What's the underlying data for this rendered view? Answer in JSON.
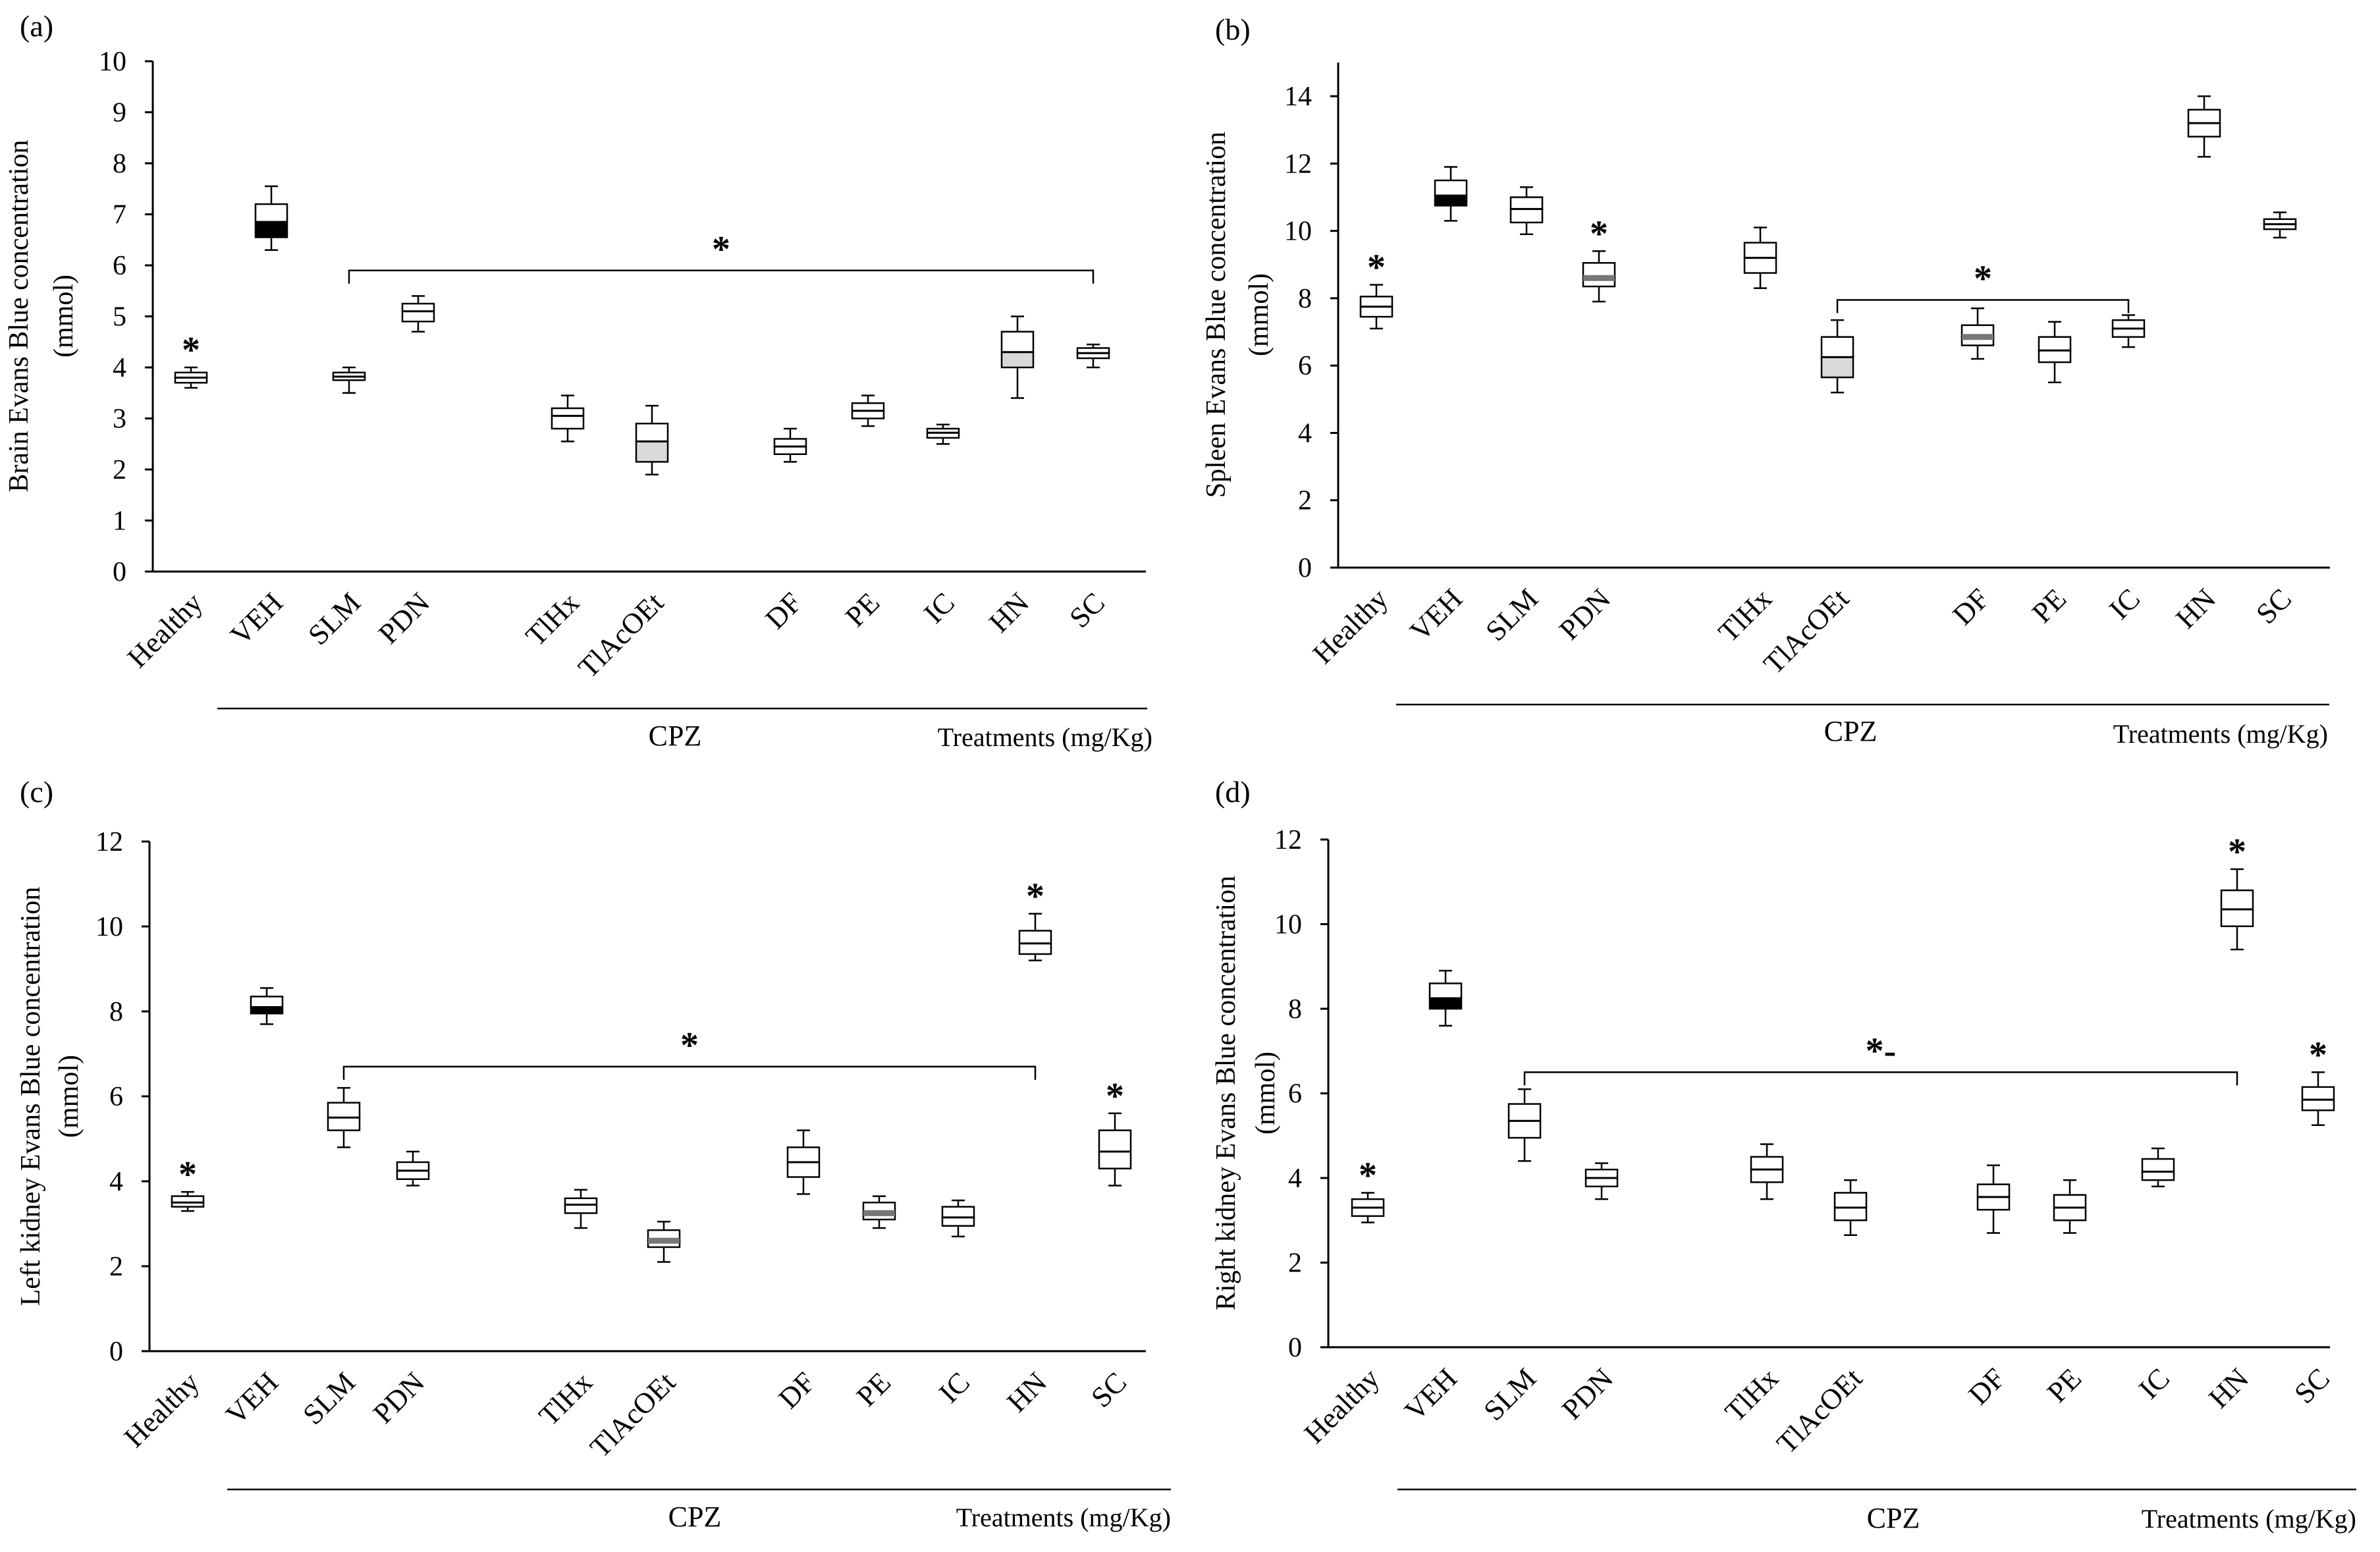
{
  "colors": {
    "axis": "#000000",
    "box_fill": "#ffffff",
    "median_dark": "#000000",
    "median_gray": "#777777",
    "light_fill": "#d9d9d9"
  },
  "chart_data": [
    {
      "panel": "(a)",
      "type": "box",
      "ylabel_main": "Brain Evans  Blue concentration",
      "ylabel_unit": "(mmol)",
      "ylim": [
        0,
        10
      ],
      "yticks": [
        "0",
        "1",
        "2",
        "3",
        "4",
        "5",
        "6",
        "7",
        "8",
        "9",
        "10"
      ],
      "categories": [
        "Healthy",
        "VEH",
        "SLM",
        "PDN",
        "TlHx",
        "TlAcOEt",
        "DF",
        "PE",
        "IC",
        "HN",
        "SC"
      ],
      "boxes": [
        {
          "min": 3.6,
          "q1": 3.7,
          "median": 3.8,
          "q3": 3.9,
          "max": 4.0,
          "style": "plain"
        },
        {
          "min": 6.3,
          "q1": 6.55,
          "median": 6.85,
          "q3": 7.2,
          "max": 7.55,
          "style": "dark_lower"
        },
        {
          "min": 3.5,
          "q1": 3.75,
          "median": 3.82,
          "q3": 3.9,
          "max": 4.0,
          "style": "plain"
        },
        {
          "min": 4.7,
          "q1": 4.9,
          "median": 5.1,
          "q3": 5.25,
          "max": 5.4,
          "style": "plain"
        },
        {
          "min": 2.55,
          "q1": 2.8,
          "median": 3.05,
          "q3": 3.2,
          "max": 3.45,
          "style": "plain"
        },
        {
          "min": 1.9,
          "q1": 2.15,
          "median": 2.55,
          "q3": 2.9,
          "max": 3.25,
          "style": "light_lower"
        },
        {
          "min": 2.15,
          "q1": 2.3,
          "median": 2.45,
          "q3": 2.6,
          "max": 2.8,
          "style": "plain"
        },
        {
          "min": 2.85,
          "q1": 3.0,
          "median": 3.15,
          "q3": 3.3,
          "max": 3.45,
          "style": "plain"
        },
        {
          "min": 2.5,
          "q1": 2.62,
          "median": 2.72,
          "q3": 2.8,
          "max": 2.88,
          "style": "plain"
        },
        {
          "min": 3.4,
          "q1": 4.0,
          "median": 4.3,
          "q3": 4.7,
          "max": 5.0,
          "style": "light_lower"
        },
        {
          "min": 4.0,
          "q1": 4.18,
          "median": 4.28,
          "q3": 4.38,
          "max": 4.45,
          "style": "plain"
        }
      ],
      "stars": [
        {
          "label": "*",
          "index": 0
        }
      ],
      "bracket": {
        "label": "*",
        "from": 2,
        "to": 10,
        "y": 5.9
      },
      "group_label": "CPZ",
      "treatments_label": "Treatments (mg/Kg)"
    },
    {
      "panel": "(b)",
      "type": "box",
      "ylabel_main": "Spleen Evans  Blue concentration",
      "ylabel_unit": "(mmol)",
      "ylim": [
        0,
        15
      ],
      "yticks": [
        "0",
        "2",
        "4",
        "6",
        "8",
        "10",
        "12",
        "14"
      ],
      "categories": [
        "Healthy",
        "VEH",
        "SLM",
        "PDN",
        "TlHx",
        "TlAcOEt",
        "DF",
        "PE",
        "IC",
        "HN",
        "SC"
      ],
      "boxes": [
        {
          "min": 7.1,
          "q1": 7.45,
          "median": 7.75,
          "q3": 8.05,
          "max": 8.4,
          "style": "plain"
        },
        {
          "min": 10.3,
          "q1": 10.75,
          "median": 11.05,
          "q3": 11.5,
          "max": 11.9,
          "style": "dark_lower"
        },
        {
          "min": 9.9,
          "q1": 10.25,
          "median": 10.65,
          "q3": 11.0,
          "max": 11.3,
          "style": "plain"
        },
        {
          "min": 7.9,
          "q1": 8.35,
          "median": 8.6,
          "q3": 9.05,
          "max": 9.4,
          "style": "gray_median"
        },
        {
          "min": 8.3,
          "q1": 8.75,
          "median": 9.2,
          "q3": 9.65,
          "max": 10.1,
          "style": "plain"
        },
        {
          "min": 5.2,
          "q1": 5.65,
          "median": 6.25,
          "q3": 6.85,
          "max": 7.35,
          "style": "light_lower"
        },
        {
          "min": 6.2,
          "q1": 6.6,
          "median": 6.85,
          "q3": 7.2,
          "max": 7.7,
          "style": "gray_median"
        },
        {
          "min": 5.5,
          "q1": 6.1,
          "median": 6.45,
          "q3": 6.85,
          "max": 7.3,
          "style": "plain"
        },
        {
          "min": 6.55,
          "q1": 6.85,
          "median": 7.1,
          "q3": 7.35,
          "max": 7.5,
          "style": "plain"
        },
        {
          "min": 12.2,
          "q1": 12.8,
          "median": 13.2,
          "q3": 13.6,
          "max": 14.0,
          "style": "plain"
        },
        {
          "min": 9.8,
          "q1": 10.05,
          "median": 10.2,
          "q3": 10.35,
          "max": 10.55,
          "style": "plain"
        }
      ],
      "stars": [
        {
          "label": "*",
          "index": 0
        },
        {
          "label": "*",
          "index": 3
        }
      ],
      "bracket": {
        "label": "*",
        "from": 5,
        "to": 8,
        "y": 7.95
      },
      "group_label": "CPZ",
      "treatments_label": "Treatments (mg/Kg)"
    },
    {
      "panel": "(c)",
      "type": "box",
      "ylabel_main": "Left kidney  Evans Blue concentration",
      "ylabel_unit": "(mmol)",
      "ylim": [
        0,
        12
      ],
      "yticks": [
        "0",
        "2",
        "4",
        "6",
        "8",
        "10",
        "12"
      ],
      "categories": [
        "Healthy",
        "VEH",
        "SLM",
        "PDN",
        "TlHx",
        "TlAcOEt",
        "DF",
        "PE",
        "IC",
        "HN",
        "SC"
      ],
      "boxes": [
        {
          "min": 3.3,
          "q1": 3.4,
          "median": 3.5,
          "q3": 3.65,
          "max": 3.75,
          "style": "plain"
        },
        {
          "min": 7.7,
          "q1": 7.95,
          "median": 8.1,
          "q3": 8.35,
          "max": 8.55,
          "style": "dark_lower"
        },
        {
          "min": 4.8,
          "q1": 5.2,
          "median": 5.5,
          "q3": 5.85,
          "max": 6.2,
          "style": "plain"
        },
        {
          "min": 3.9,
          "q1": 4.05,
          "median": 4.25,
          "q3": 4.45,
          "max": 4.7,
          "style": "plain"
        },
        {
          "min": 2.9,
          "q1": 3.25,
          "median": 3.45,
          "q3": 3.6,
          "max": 3.8,
          "style": "plain"
        },
        {
          "min": 2.1,
          "q1": 2.45,
          "median": 2.6,
          "q3": 2.85,
          "max": 3.05,
          "style": "gray_median"
        },
        {
          "min": 3.7,
          "q1": 4.1,
          "median": 4.45,
          "q3": 4.8,
          "max": 5.2,
          "style": "plain"
        },
        {
          "min": 2.9,
          "q1": 3.1,
          "median": 3.25,
          "q3": 3.5,
          "max": 3.65,
          "style": "gray_median"
        },
        {
          "min": 2.7,
          "q1": 2.95,
          "median": 3.15,
          "q3": 3.4,
          "max": 3.55,
          "style": "plain"
        },
        {
          "min": 9.2,
          "q1": 9.35,
          "median": 9.6,
          "q3": 9.9,
          "max": 10.3,
          "style": "plain"
        },
        {
          "min": 3.9,
          "q1": 4.3,
          "median": 4.7,
          "q3": 5.2,
          "max": 5.6,
          "style": "plain"
        }
      ],
      "stars": [
        {
          "label": "*",
          "index": 0
        },
        {
          "label": "*",
          "index": 9
        },
        {
          "label": "*",
          "index": 10
        }
      ],
      "bracket": {
        "label": "*",
        "from": 2,
        "to": 9,
        "y": 6.7
      },
      "group_label": "CPZ",
      "treatments_label": "Treatments (mg/Kg)"
    },
    {
      "panel": "(d)",
      "type": "box",
      "ylabel_main": "Right kidney  Evans Blue concentration",
      "ylabel_unit": "(mmol)",
      "ylim": [
        0,
        12
      ],
      "yticks": [
        "0",
        "2",
        "4",
        "6",
        "8",
        "10",
        "12"
      ],
      "categories": [
        "Healthy",
        "VEH",
        "SLM",
        "PDN",
        "TlHx",
        "TlAcOEt",
        "DF",
        "PE",
        "IC",
        "HN",
        "SC"
      ],
      "boxes": [
        {
          "min": 2.95,
          "q1": 3.1,
          "median": 3.3,
          "q3": 3.5,
          "max": 3.65,
          "style": "plain"
        },
        {
          "min": 7.6,
          "q1": 8.0,
          "median": 8.25,
          "q3": 8.6,
          "max": 8.9,
          "style": "dark_lower"
        },
        {
          "min": 4.4,
          "q1": 4.95,
          "median": 5.35,
          "q3": 5.75,
          "max": 6.1,
          "style": "plain"
        },
        {
          "min": 3.5,
          "q1": 3.8,
          "median": 4.0,
          "q3": 4.2,
          "max": 4.35,
          "style": "plain"
        },
        {
          "min": 3.5,
          "q1": 3.9,
          "median": 4.2,
          "q3": 4.5,
          "max": 4.8,
          "style": "plain"
        },
        {
          "min": 2.65,
          "q1": 3.0,
          "median": 3.3,
          "q3": 3.65,
          "max": 3.95,
          "style": "plain"
        },
        {
          "min": 2.7,
          "q1": 3.25,
          "median": 3.55,
          "q3": 3.85,
          "max": 4.3,
          "style": "plain"
        },
        {
          "min": 2.7,
          "q1": 3.0,
          "median": 3.3,
          "q3": 3.6,
          "max": 3.95,
          "style": "plain"
        },
        {
          "min": 3.8,
          "q1": 3.95,
          "median": 4.15,
          "q3": 4.45,
          "max": 4.7,
          "style": "plain"
        },
        {
          "min": 9.4,
          "q1": 9.95,
          "median": 10.35,
          "q3": 10.8,
          "max": 11.3,
          "style": "plain"
        },
        {
          "min": 5.25,
          "q1": 5.6,
          "median": 5.85,
          "q3": 6.15,
          "max": 6.5,
          "style": "plain"
        }
      ],
      "stars": [
        {
          "label": "*",
          "index": 0
        },
        {
          "label": "*",
          "index": 9
        },
        {
          "label": "*",
          "index": 10
        }
      ],
      "bracket": {
        "label": "*-",
        "from": 2,
        "to": 9,
        "y": 6.5
      },
      "group_label": "CPZ",
      "treatments_label": "Treatments (mg/Kg)"
    }
  ]
}
